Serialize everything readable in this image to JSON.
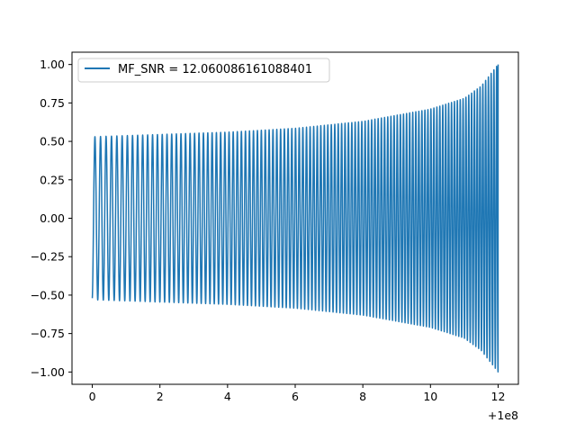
{
  "chart_data": {
    "type": "line",
    "title": "",
    "xlabel": "",
    "ylabel": "",
    "x_offset_label": "+1e8",
    "xlim": [
      -0.6,
      12.6
    ],
    "ylim": [
      -1.08,
      1.08
    ],
    "xticks": [
      0,
      2,
      4,
      6,
      8,
      10,
      12
    ],
    "xtick_labels": [
      "0",
      "2",
      "4",
      "6",
      "8",
      "10",
      "12"
    ],
    "yticks": [
      1.0,
      0.75,
      0.5,
      0.25,
      0.0,
      -0.25,
      -0.5,
      -0.75,
      -1.0
    ],
    "ytick_labels": [
      "1.00",
      "0.75",
      "0.50",
      "0.25",
      "0.00",
      "−0.25",
      "−0.50",
      "−0.75",
      "−1.00"
    ],
    "grid": false,
    "legend_position": "upper-left",
    "series": [
      {
        "name": "MF_SNR = 12.060086161088401",
        "color": "#1f77b4",
        "description_points": {
          "x": [
            0,
            2,
            4,
            6,
            8,
            10,
            11,
            11.5,
            12
          ],
          "envelope": [
            0.53,
            0.545,
            0.56,
            0.585,
            0.63,
            0.71,
            0.78,
            0.86,
            1.0
          ]
        },
        "cycles_visible": 110,
        "start_value": -0.52,
        "end_value": 1.0
      }
    ]
  }
}
